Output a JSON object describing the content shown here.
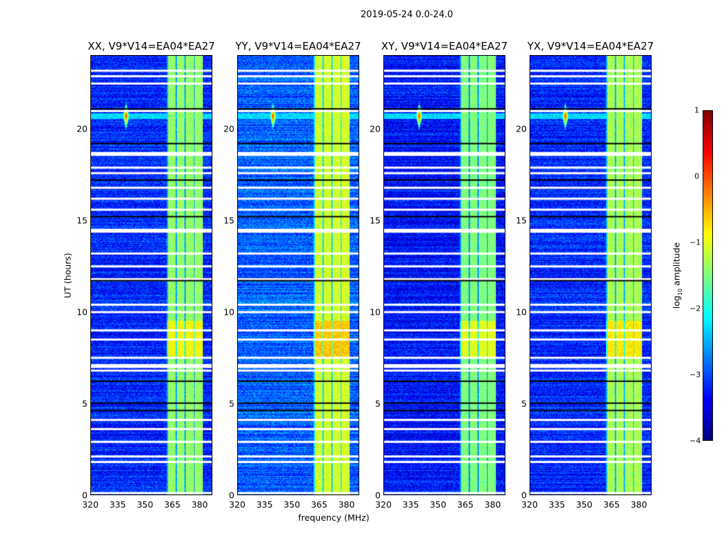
{
  "figure": {
    "suptitle": "2019-05-24 0.0-24.0",
    "xlabel": "frequency (MHz)",
    "ylabel": "UT (hours)"
  },
  "colorbar": {
    "label_prefix": "log",
    "label_sub": "10",
    "label_suffix": " amplitude",
    "ticks": [
      "1",
      "0",
      "−1",
      "−2",
      "−3",
      "−4"
    ],
    "clim": [
      -4,
      1
    ],
    "colormap": "jet"
  },
  "chart_data": [
    {
      "type": "heatmap",
      "title": "XX, V9*V14=EA04*EA27",
      "xlim": [
        320,
        387
      ],
      "ylim": [
        0,
        24
      ],
      "xticks": [
        "320",
        "335",
        "350",
        "365",
        "380"
      ],
      "yticks": [
        "0",
        "5",
        "10",
        "15",
        "20"
      ],
      "rfi_band_mhz": [
        362,
        382
      ],
      "background_level": -3.2,
      "rfi_level": -1.4,
      "seed": 1
    },
    {
      "type": "heatmap",
      "title": "YY, V9*V14=EA04*EA27",
      "xlim": [
        320,
        387
      ],
      "ylim": [
        0,
        24
      ],
      "xticks": [
        "320",
        "335",
        "350",
        "365",
        "380"
      ],
      "yticks": [
        "0",
        "5",
        "10",
        "15",
        "20"
      ],
      "rfi_band_mhz": [
        362,
        382
      ],
      "background_level": -2.9,
      "rfi_level": -1.1,
      "seed": 2
    },
    {
      "type": "heatmap",
      "title": "XY, V9*V14=EA04*EA27",
      "xlim": [
        320,
        387
      ],
      "ylim": [
        0,
        24
      ],
      "xticks": [
        "320",
        "335",
        "350",
        "365",
        "380"
      ],
      "yticks": [
        "0",
        "5",
        "10",
        "15",
        "20"
      ],
      "rfi_band_mhz": [
        362,
        382
      ],
      "background_level": -3.3,
      "rfi_level": -1.5,
      "seed": 3
    },
    {
      "type": "heatmap",
      "title": "YX, V9*V14=EA04*EA27",
      "xlim": [
        320,
        387
      ],
      "ylim": [
        0,
        24
      ],
      "xticks": [
        "320",
        "335",
        "350",
        "365",
        "380"
      ],
      "yticks": [
        "0",
        "5",
        "10",
        "15",
        "20"
      ],
      "rfi_band_mhz": [
        362,
        382
      ],
      "background_level": -3.2,
      "rfi_level": -1.3,
      "seed": 4
    }
  ],
  "flagged_hours_white": [
    23.2,
    22.9,
    22.5,
    21.0,
    18.7,
    18.6,
    17.9,
    17.6,
    16.8,
    16.2,
    15.6,
    14.5,
    14.4,
    13.2,
    12.5,
    11.8,
    10.4,
    10.0,
    9.0,
    8.5,
    7.5,
    7.1,
    7.0,
    6.8,
    4.1,
    3.6,
    2.9,
    2.1,
    1.8,
    0.1
  ],
  "flagged_hours_black": [
    21.1,
    19.2,
    17.2,
    15.2,
    11.7,
    6.2,
    5.0,
    4.6
  ],
  "rfi_spike": {
    "freq_mhz": 339.5,
    "hour": 20.7,
    "level": 0.3
  }
}
